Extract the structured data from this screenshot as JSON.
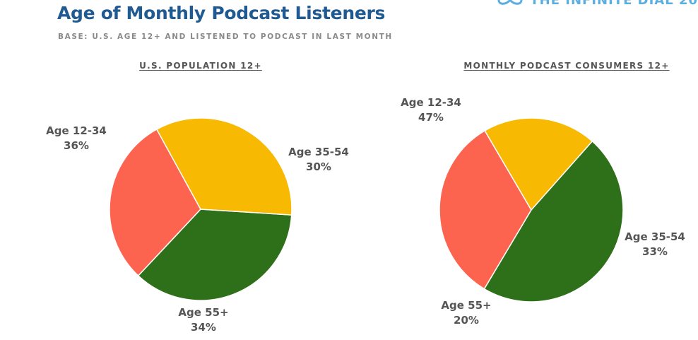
{
  "header": {
    "title": "Age of Monthly Podcast Listeners",
    "subtitle": "BASE: U.S. AGE 12+ AND LISTENED TO PODCAST IN LAST MONTH",
    "brand": "THE INFINITE DIAL 20",
    "brand_icon": "infinite-dial-logo-icon"
  },
  "colors": {
    "age_12_34": "#2e7019",
    "age_35_54": "#fd644f",
    "age_55_plus": "#f7b901",
    "title": "#1f5a93",
    "label": "#555555"
  },
  "chart_data": [
    {
      "type": "pie",
      "title": "U.S. POPULATION 12+",
      "series": [
        {
          "name": "Age 12-34",
          "value": 36,
          "label": "36%"
        },
        {
          "name": "Age 35-54",
          "value": 30,
          "label": "30%"
        },
        {
          "name": "Age 55+",
          "value": 34,
          "label": "34%"
        }
      ]
    },
    {
      "type": "pie",
      "title": "MONTHLY PODCAST CONSUMERS 12+",
      "series": [
        {
          "name": "Age 12-34",
          "value": 47,
          "label": "47%"
        },
        {
          "name": "Age 35-54",
          "value": 33,
          "label": "33%"
        },
        {
          "name": "Age 55+",
          "value": 20,
          "label": "20%"
        }
      ]
    }
  ]
}
